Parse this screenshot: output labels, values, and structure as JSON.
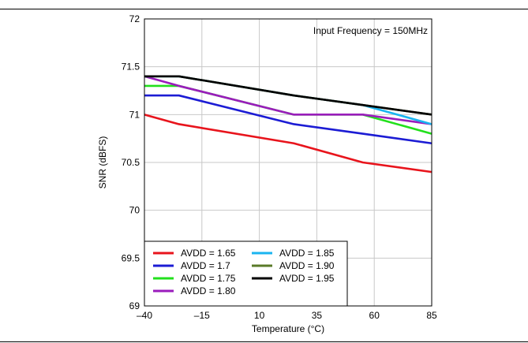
{
  "chart_data": {
    "type": "line",
    "annotation": "Input Frequency = 150MHz",
    "xlabel": "Temperature (°C)",
    "ylabel": "SNR (dBFS)",
    "xlim": [
      -40,
      85
    ],
    "ylim": [
      69,
      72
    ],
    "x_ticks": [
      -40,
      -15,
      10,
      35,
      60,
      85
    ],
    "x_tick_labels": [
      "–40",
      "–15",
      "10",
      "35",
      "60",
      "85"
    ],
    "y_ticks": [
      69,
      69.5,
      70,
      70.5,
      71,
      71.5,
      72
    ],
    "y_tick_labels": [
      "69",
      "69.5",
      "70",
      "70.5",
      "71",
      "71.5",
      "72"
    ],
    "grid": true,
    "legend_position": "bottom-left",
    "series": [
      {
        "name": "AVDD = 1.65",
        "color": "#e8141c",
        "x": [
          -40,
          -25,
          25,
          55,
          85
        ],
        "y": [
          71.0,
          70.9,
          70.7,
          70.5,
          70.4
        ]
      },
      {
        "name": "AVDD = 1.7",
        "color": "#1c1cd4",
        "x": [
          -40,
          -25,
          25,
          55,
          85
        ],
        "y": [
          71.2,
          71.2,
          70.9,
          70.8,
          70.7
        ]
      },
      {
        "name": "AVDD = 1.75",
        "color": "#22e01c",
        "x": [
          -40,
          -25,
          25,
          55,
          85
        ],
        "y": [
          71.3,
          71.3,
          71.0,
          71.0,
          70.8
        ]
      },
      {
        "name": "AVDD = 1.80",
        "color": "#9a1cbc",
        "x": [
          -40,
          -25,
          25,
          55,
          85
        ],
        "y": [
          71.4,
          71.3,
          71.0,
          71.0,
          70.9
        ]
      },
      {
        "name": "AVDD = 1.85",
        "color": "#1ab4f0",
        "x": [
          -40,
          -25,
          25,
          55,
          85
        ],
        "y": [
          71.4,
          71.4,
          71.2,
          71.1,
          70.9
        ]
      },
      {
        "name": "AVDD = 1.90",
        "color": "#5a7a28",
        "x": [
          -40,
          -25,
          25,
          55,
          85
        ],
        "y": [
          71.4,
          71.4,
          71.2,
          71.1,
          71.0
        ]
      },
      {
        "name": "AVDD = 1.95",
        "color": "#000000",
        "x": [
          -40,
          -25,
          25,
          55,
          85
        ],
        "y": [
          71.4,
          71.4,
          71.2,
          71.1,
          71.0
        ]
      }
    ]
  }
}
